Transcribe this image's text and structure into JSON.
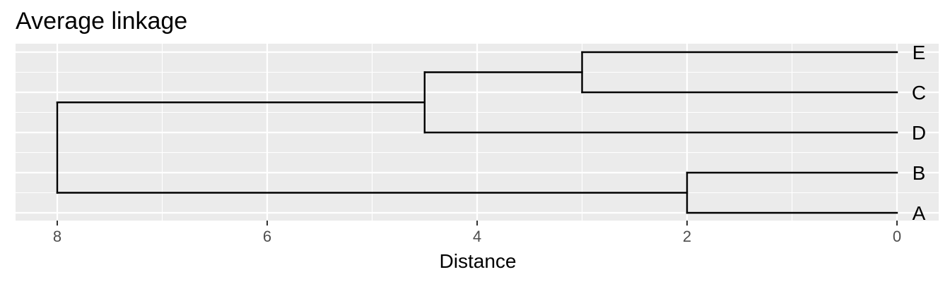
{
  "chart_data": {
    "type": "dendrogram",
    "title": "Average linkage",
    "xlabel": "Distance",
    "ylabel": "",
    "x_axis": {
      "reversed": true,
      "range": [
        0,
        8
      ],
      "ticks": [
        8,
        6,
        4,
        2,
        0
      ],
      "tick_labels": [
        "8",
        "6",
        "4",
        "2",
        "0"
      ]
    },
    "leaves_top_to_bottom": [
      "E",
      "C",
      "D",
      "B",
      "A"
    ],
    "merges": [
      {
        "children": [
          "E",
          "C"
        ],
        "height": 3
      },
      {
        "children": [
          "E+C",
          "D"
        ],
        "height": 4.5
      },
      {
        "children": [
          "B",
          "A"
        ],
        "height": 2
      },
      {
        "children": [
          "E+C+D",
          "B+A"
        ],
        "height": 8
      }
    ],
    "grid": true,
    "panel_background": "#ebebeb",
    "grid_color": "#ffffff",
    "line_color": "#000000",
    "legend": "none"
  }
}
